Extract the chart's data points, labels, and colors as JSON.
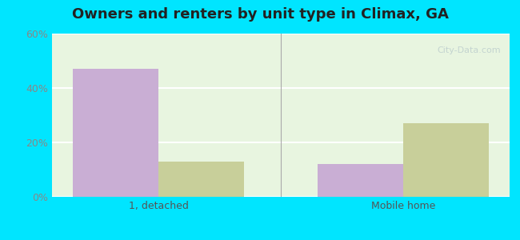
{
  "title": "Owners and renters by unit type in Climax, GA",
  "categories": [
    "1, detached",
    "Mobile home"
  ],
  "owner_values": [
    47,
    12
  ],
  "renter_values": [
    13,
    27
  ],
  "owner_color": "#c9aed4",
  "renter_color": "#c8cf9a",
  "ylim": [
    0,
    60
  ],
  "yticks": [
    0,
    20,
    40,
    60
  ],
  "ytick_labels": [
    "0%",
    "20%",
    "40%",
    "60%"
  ],
  "bar_width": 0.35,
  "background_color": "#e8f5e0",
  "outer_background": "#00e5ff",
  "grid_color": "#ffffff",
  "watermark": "City-Data.com"
}
